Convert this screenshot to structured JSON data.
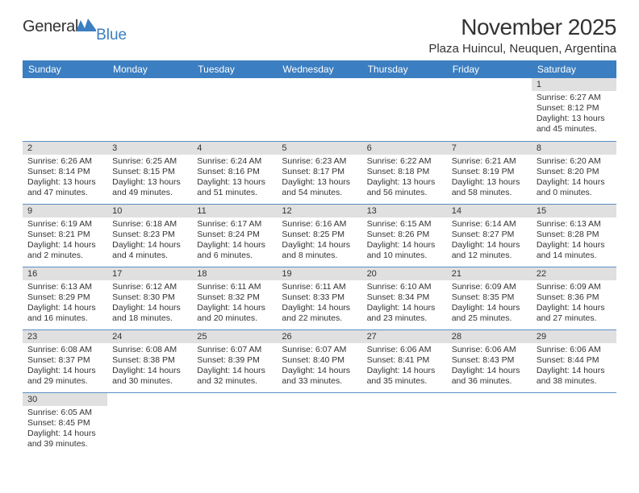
{
  "logo": {
    "word1": "General",
    "word2": "Blue"
  },
  "title": "November 2025",
  "location": "Plaza Huincul, Neuquen, Argentina",
  "colors": {
    "header_bg": "#3b7ec1",
    "header_text": "#ffffff",
    "daynum_bg": "#e0e0e0",
    "text": "#333333",
    "border": "#5a8fc8",
    "logo_blue": "#3b7ec1"
  },
  "dayHeaders": [
    "Sunday",
    "Monday",
    "Tuesday",
    "Wednesday",
    "Thursday",
    "Friday",
    "Saturday"
  ],
  "weeks": [
    [
      {
        "n": "",
        "sr": "",
        "ss": "",
        "dl": ""
      },
      {
        "n": "",
        "sr": "",
        "ss": "",
        "dl": ""
      },
      {
        "n": "",
        "sr": "",
        "ss": "",
        "dl": ""
      },
      {
        "n": "",
        "sr": "",
        "ss": "",
        "dl": ""
      },
      {
        "n": "",
        "sr": "",
        "ss": "",
        "dl": ""
      },
      {
        "n": "",
        "sr": "",
        "ss": "",
        "dl": ""
      },
      {
        "n": "1",
        "sr": "Sunrise: 6:27 AM",
        "ss": "Sunset: 8:12 PM",
        "dl": "Daylight: 13 hours and 45 minutes."
      }
    ],
    [
      {
        "n": "2",
        "sr": "Sunrise: 6:26 AM",
        "ss": "Sunset: 8:14 PM",
        "dl": "Daylight: 13 hours and 47 minutes."
      },
      {
        "n": "3",
        "sr": "Sunrise: 6:25 AM",
        "ss": "Sunset: 8:15 PM",
        "dl": "Daylight: 13 hours and 49 minutes."
      },
      {
        "n": "4",
        "sr": "Sunrise: 6:24 AM",
        "ss": "Sunset: 8:16 PM",
        "dl": "Daylight: 13 hours and 51 minutes."
      },
      {
        "n": "5",
        "sr": "Sunrise: 6:23 AM",
        "ss": "Sunset: 8:17 PM",
        "dl": "Daylight: 13 hours and 54 minutes."
      },
      {
        "n": "6",
        "sr": "Sunrise: 6:22 AM",
        "ss": "Sunset: 8:18 PM",
        "dl": "Daylight: 13 hours and 56 minutes."
      },
      {
        "n": "7",
        "sr": "Sunrise: 6:21 AM",
        "ss": "Sunset: 8:19 PM",
        "dl": "Daylight: 13 hours and 58 minutes."
      },
      {
        "n": "8",
        "sr": "Sunrise: 6:20 AM",
        "ss": "Sunset: 8:20 PM",
        "dl": "Daylight: 14 hours and 0 minutes."
      }
    ],
    [
      {
        "n": "9",
        "sr": "Sunrise: 6:19 AM",
        "ss": "Sunset: 8:21 PM",
        "dl": "Daylight: 14 hours and 2 minutes."
      },
      {
        "n": "10",
        "sr": "Sunrise: 6:18 AM",
        "ss": "Sunset: 8:23 PM",
        "dl": "Daylight: 14 hours and 4 minutes."
      },
      {
        "n": "11",
        "sr": "Sunrise: 6:17 AM",
        "ss": "Sunset: 8:24 PM",
        "dl": "Daylight: 14 hours and 6 minutes."
      },
      {
        "n": "12",
        "sr": "Sunrise: 6:16 AM",
        "ss": "Sunset: 8:25 PM",
        "dl": "Daylight: 14 hours and 8 minutes."
      },
      {
        "n": "13",
        "sr": "Sunrise: 6:15 AM",
        "ss": "Sunset: 8:26 PM",
        "dl": "Daylight: 14 hours and 10 minutes."
      },
      {
        "n": "14",
        "sr": "Sunrise: 6:14 AM",
        "ss": "Sunset: 8:27 PM",
        "dl": "Daylight: 14 hours and 12 minutes."
      },
      {
        "n": "15",
        "sr": "Sunrise: 6:13 AM",
        "ss": "Sunset: 8:28 PM",
        "dl": "Daylight: 14 hours and 14 minutes."
      }
    ],
    [
      {
        "n": "16",
        "sr": "Sunrise: 6:13 AM",
        "ss": "Sunset: 8:29 PM",
        "dl": "Daylight: 14 hours and 16 minutes."
      },
      {
        "n": "17",
        "sr": "Sunrise: 6:12 AM",
        "ss": "Sunset: 8:30 PM",
        "dl": "Daylight: 14 hours and 18 minutes."
      },
      {
        "n": "18",
        "sr": "Sunrise: 6:11 AM",
        "ss": "Sunset: 8:32 PM",
        "dl": "Daylight: 14 hours and 20 minutes."
      },
      {
        "n": "19",
        "sr": "Sunrise: 6:11 AM",
        "ss": "Sunset: 8:33 PM",
        "dl": "Daylight: 14 hours and 22 minutes."
      },
      {
        "n": "20",
        "sr": "Sunrise: 6:10 AM",
        "ss": "Sunset: 8:34 PM",
        "dl": "Daylight: 14 hours and 23 minutes."
      },
      {
        "n": "21",
        "sr": "Sunrise: 6:09 AM",
        "ss": "Sunset: 8:35 PM",
        "dl": "Daylight: 14 hours and 25 minutes."
      },
      {
        "n": "22",
        "sr": "Sunrise: 6:09 AM",
        "ss": "Sunset: 8:36 PM",
        "dl": "Daylight: 14 hours and 27 minutes."
      }
    ],
    [
      {
        "n": "23",
        "sr": "Sunrise: 6:08 AM",
        "ss": "Sunset: 8:37 PM",
        "dl": "Daylight: 14 hours and 29 minutes."
      },
      {
        "n": "24",
        "sr": "Sunrise: 6:08 AM",
        "ss": "Sunset: 8:38 PM",
        "dl": "Daylight: 14 hours and 30 minutes."
      },
      {
        "n": "25",
        "sr": "Sunrise: 6:07 AM",
        "ss": "Sunset: 8:39 PM",
        "dl": "Daylight: 14 hours and 32 minutes."
      },
      {
        "n": "26",
        "sr": "Sunrise: 6:07 AM",
        "ss": "Sunset: 8:40 PM",
        "dl": "Daylight: 14 hours and 33 minutes."
      },
      {
        "n": "27",
        "sr": "Sunrise: 6:06 AM",
        "ss": "Sunset: 8:41 PM",
        "dl": "Daylight: 14 hours and 35 minutes."
      },
      {
        "n": "28",
        "sr": "Sunrise: 6:06 AM",
        "ss": "Sunset: 8:43 PM",
        "dl": "Daylight: 14 hours and 36 minutes."
      },
      {
        "n": "29",
        "sr": "Sunrise: 6:06 AM",
        "ss": "Sunset: 8:44 PM",
        "dl": "Daylight: 14 hours and 38 minutes."
      }
    ],
    [
      {
        "n": "30",
        "sr": "Sunrise: 6:05 AM",
        "ss": "Sunset: 8:45 PM",
        "dl": "Daylight: 14 hours and 39 minutes."
      },
      {
        "n": "",
        "sr": "",
        "ss": "",
        "dl": ""
      },
      {
        "n": "",
        "sr": "",
        "ss": "",
        "dl": ""
      },
      {
        "n": "",
        "sr": "",
        "ss": "",
        "dl": ""
      },
      {
        "n": "",
        "sr": "",
        "ss": "",
        "dl": ""
      },
      {
        "n": "",
        "sr": "",
        "ss": "",
        "dl": ""
      },
      {
        "n": "",
        "sr": "",
        "ss": "",
        "dl": ""
      }
    ]
  ]
}
